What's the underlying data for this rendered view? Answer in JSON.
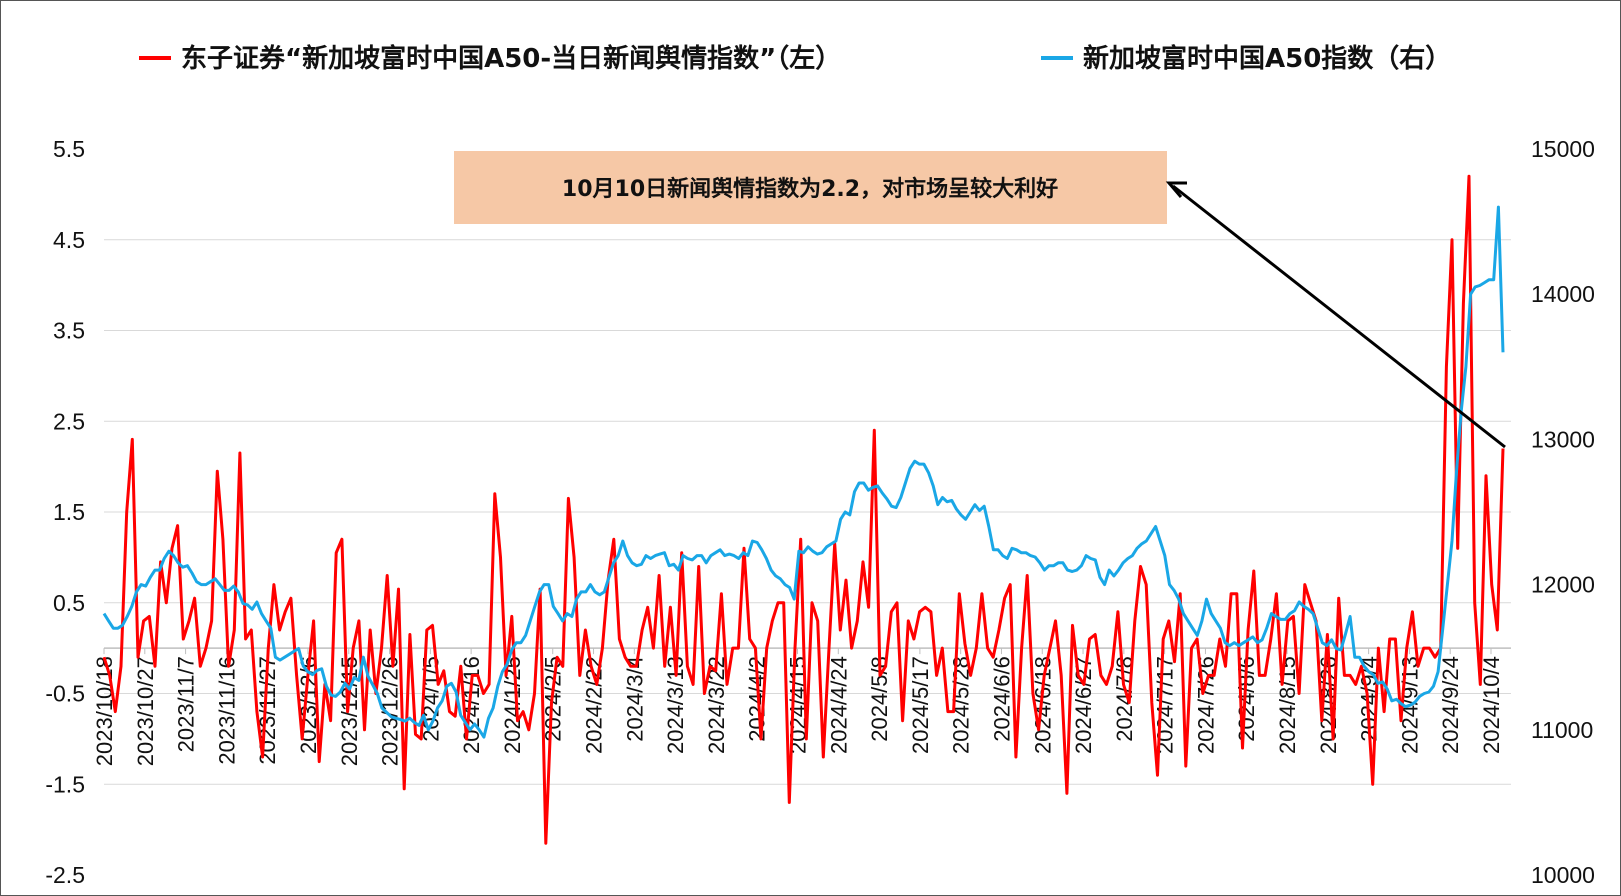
{
  "chart_data": {
    "type": "line",
    "legend_placement": "top",
    "grid": "horizontal",
    "colors": {
      "news_index": "#ff0000",
      "a50_index": "#1aa7e6",
      "annotation_box": "#f6c8a6",
      "grid": "#d9d9d9"
    },
    "series": [
      {
        "name": "东子证券“新加坡富时中国A50-当日新闻舆情指数”（左）",
        "axis": "left",
        "values": [
          -0.1,
          -0.3,
          -0.7,
          -0.2,
          1.5,
          2.3,
          -0.1,
          0.3,
          0.35,
          -0.2,
          0.95,
          0.5,
          1.1,
          1.35,
          0.1,
          0.3,
          0.55,
          -0.2,
          0.0,
          0.3,
          1.95,
          1.2,
          -0.2,
          0.2,
          2.15,
          0.1,
          0.2,
          -0.7,
          -1.2,
          0.0,
          0.7,
          0.2,
          0.4,
          0.55,
          -0.3,
          -1.0,
          -0.3,
          0.3,
          -1.25,
          -0.4,
          -0.8,
          1.05,
          1.2,
          -0.7,
          0.0,
          0.3,
          -0.9,
          0.2,
          -0.5,
          0.0,
          0.8,
          -0.2,
          0.65,
          -1.55,
          0.15,
          -0.95,
          -1.0,
          0.2,
          0.25,
          -0.4,
          -0.25,
          -0.7,
          -0.75,
          -0.2,
          -1.0,
          -0.3,
          -0.3,
          -0.5,
          -0.4,
          1.7,
          1.0,
          -0.3,
          0.35,
          -0.8,
          -0.7,
          -0.9,
          -0.5,
          0.65,
          -2.15,
          -0.6,
          -0.1,
          -0.2,
          1.65,
          1.0,
          -0.3,
          0.2,
          -0.2,
          -0.4,
          0.0,
          0.75,
          1.2,
          0.1,
          -0.1,
          -0.2,
          -0.2,
          0.2,
          0.45,
          0.0,
          0.8,
          -0.2,
          0.45,
          -0.3,
          1.05,
          -0.2,
          -0.4,
          0.9,
          -0.5,
          -0.2,
          -0.25,
          0.6,
          -0.4,
          0.0,
          0.0,
          1.1,
          0.1,
          0.0,
          -1.0,
          0.0,
          0.3,
          0.5,
          0.5,
          -1.7,
          0.0,
          1.2,
          -1.0,
          0.5,
          0.3,
          -1.2,
          0.0,
          1.15,
          0.2,
          0.75,
          0.0,
          0.3,
          0.95,
          0.45,
          2.4,
          -0.3,
          -0.2,
          0.4,
          0.5,
          -0.8,
          0.3,
          0.1,
          0.4,
          0.45,
          0.4,
          -0.3,
          0.0,
          -0.7,
          -0.7,
          0.6,
          0.05,
          -0.3,
          0.0,
          0.6,
          0.0,
          -0.1,
          0.2,
          0.55,
          0.7,
          -1.2,
          0.0,
          0.8,
          -0.5,
          -0.9,
          -0.3,
          0.0,
          0.3,
          -0.3,
          -1.6,
          0.25,
          -0.3,
          -0.4,
          0.1,
          0.15,
          -0.3,
          -0.4,
          -0.2,
          0.4,
          -0.4,
          -0.6,
          0.3,
          0.9,
          0.7,
          -0.6,
          -1.4,
          0.1,
          0.3,
          -0.15,
          0.6,
          -1.3,
          0.0,
          0.1,
          -0.5,
          -0.3,
          -0.3,
          0.1,
          -0.2,
          0.6,
          0.6,
          -1.1,
          0.2,
          0.85,
          -0.3,
          -0.3,
          0.1,
          0.6,
          -0.4,
          0.3,
          0.35,
          -0.5,
          0.7,
          0.5,
          0.3,
          -0.8,
          0.15,
          -1.0,
          0.55,
          -0.3,
          -0.3,
          -0.4,
          -0.2,
          -0.5,
          -1.5,
          0.0,
          -0.7,
          0.1,
          0.1,
          -0.8,
          0.0,
          0.4,
          -0.2,
          0.0,
          0.0,
          -0.1,
          0.0,
          3.1,
          4.5,
          1.1,
          3.8,
          5.2,
          0.5,
          -0.4,
          1.9,
          0.7,
          0.2,
          2.2
        ]
      },
      {
        "name": "新加坡富时中国A50指数（右）",
        "axis": "right",
        "values": [
          11800,
          11750,
          11700,
          11700,
          11720,
          11780,
          11850,
          11950,
          12000,
          11990,
          12050,
          12100,
          12100,
          12180,
          12230,
          12200,
          12150,
          12120,
          12130,
          12080,
          12020,
          12000,
          12000,
          12020,
          12040,
          12000,
          11960,
          11960,
          11990,
          11950,
          11870,
          11860,
          11830,
          11880,
          11800,
          11750,
          11700,
          11500,
          11480,
          11500,
          11520,
          11540,
          11560,
          11440,
          11400,
          11380,
          11410,
          11420,
          11300,
          11240,
          11230,
          11260,
          11320,
          11280,
          11360,
          11340,
          11500,
          11370,
          11310,
          11250,
          11150,
          11120,
          11090,
          11080,
          11070,
          11060,
          11080,
          11050,
          11030,
          11100,
          11000,
          11060,
          11150,
          11200,
          11300,
          11320,
          11260,
          11100,
          11050,
          11000,
          11040,
          11000,
          10950,
          11080,
          11150,
          11300,
          11400,
          11450,
          11550,
          11600,
          11600,
          11650,
          11750,
          11850,
          11950,
          12000,
          12000,
          11850,
          11800,
          11750,
          11800,
          11780,
          11900,
          11950,
          11950,
          12000,
          11950,
          11930,
          11950,
          12050,
          12150,
          12200,
          12300,
          12200,
          12150,
          12130,
          12140,
          12200,
          12180,
          12200,
          12210,
          12220,
          12130,
          12140,
          12100,
          12200,
          12180,
          12170,
          12200,
          12200,
          12150,
          12200,
          12220,
          12240,
          12200,
          12210,
          12200,
          12180,
          12220,
          12200,
          12300,
          12290,
          12240,
          12180,
          12100,
          12060,
          12040,
          12000,
          11980,
          11900,
          12230,
          12220,
          12260,
          12230,
          12210,
          12220,
          12260,
          12280,
          12300,
          12450,
          12500,
          12480,
          12640,
          12700,
          12700,
          12650,
          12670,
          12680,
          12630,
          12590,
          12540,
          12530,
          12600,
          12700,
          12800,
          12850,
          12830,
          12830,
          12770,
          12680,
          12550,
          12600,
          12570,
          12580,
          12520,
          12480,
          12450,
          12500,
          12550,
          12510,
          12540,
          12400,
          12240,
          12240,
          12200,
          12180,
          12250,
          12240,
          12220,
          12220,
          12200,
          12190,
          12150,
          12100,
          12130,
          12130,
          12150,
          12150,
          12100,
          12090,
          12100,
          12130,
          12200,
          12180,
          12170,
          12050,
          12000,
          12100,
          12060,
          12100,
          12150,
          12180,
          12200,
          12250,
          12280,
          12300,
          12350,
          12400,
          12300,
          12200,
          12000,
          11960,
          11900,
          11800,
          11750,
          11700,
          11650,
          11750,
          11900,
          11800,
          11750,
          11700,
          11600,
          11580,
          11600,
          11580,
          11600,
          11620,
          11640,
          11600,
          11620,
          11700,
          11800,
          11780,
          11760,
          11760,
          11800,
          11820,
          11880,
          11850,
          11830,
          11800,
          11700,
          11600,
          11580,
          11620,
          11560,
          11550,
          11660,
          11780,
          11500,
          11500,
          11440,
          11400,
          11380,
          11320,
          11330,
          11280,
          11200,
          11210,
          11180,
          11160,
          11170,
          11190,
          11230,
          11250,
          11260,
          11300,
          11400,
          11700,
          12000,
          12300,
          12800,
          13200,
          13500,
          14000,
          14050,
          14060,
          14080,
          14100,
          14100,
          14600,
          13600
        ]
      }
    ],
    "y_left": {
      "ylim": [
        -2.5,
        5.5
      ],
      "ticks": [
        "5.5",
        "4.5",
        "3.5",
        "2.5",
        "1.5",
        "0.5",
        "-0.5",
        "-1.5",
        "-2.5"
      ]
    },
    "y_right": {
      "ylim": [
        10000,
        15000
      ],
      "ticks": [
        "15000",
        "14000",
        "13000",
        "12000",
        "11000",
        "10000"
      ]
    },
    "x_tick_labels": [
      "2023/10/18",
      "2023/10/27",
      "2023/11/7",
      "2023/11/16",
      "2023/11/27",
      "2023/12/6",
      "2023/12/15",
      "2023/12/26",
      "2024/1/5",
      "2024/1/16",
      "2024/1/25",
      "2024/2/5",
      "2024/2/22",
      "2024/3/4",
      "2024/3/13",
      "2024/3/22",
      "2024/4/2",
      "2024/4/15",
      "2024/4/24",
      "2024/5/8",
      "2024/5/17",
      "2024/5/28",
      "2024/6/6",
      "2024/6/18",
      "2024/6/27",
      "2024/7/8",
      "2024/7/17",
      "2024/7/26",
      "2024/8/6",
      "2024/8/15",
      "2024/8/26",
      "2024/9/4",
      "2024/9/13",
      "2024/9/24",
      "2024/10/4"
    ],
    "annotation": {
      "text": "10月10日新闻舆情指数为2.2，对市场呈较大利好"
    }
  }
}
